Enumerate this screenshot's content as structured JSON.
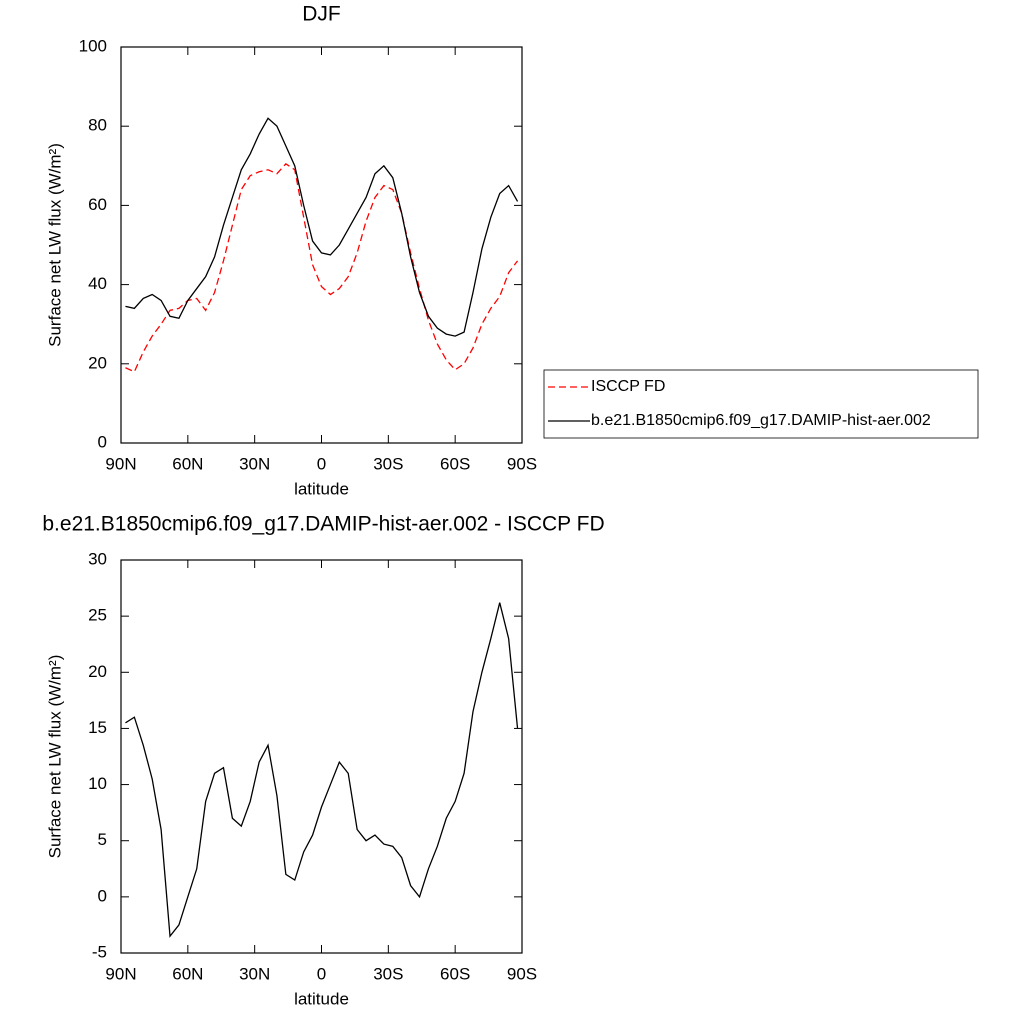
{
  "chart_data": [
    {
      "type": "line",
      "title": "DJF",
      "xlabel": "latitude",
      "ylabel": "Surface net LW flux (W/m²)",
      "x": [
        88,
        84,
        80,
        76,
        72,
        68,
        64,
        60,
        56,
        52,
        48,
        44,
        40,
        36,
        32,
        28,
        24,
        20,
        16,
        12,
        8,
        4,
        0,
        -4,
        -8,
        -12,
        -16,
        -20,
        -24,
        -28,
        -32,
        -36,
        -40,
        -44,
        -48,
        -52,
        -56,
        -60,
        -64,
        -68,
        -72,
        -76,
        -80,
        -84,
        -88
      ],
      "series": [
        {
          "name": "ISCCP FD",
          "color": "#ff0000",
          "style": "dashed",
          "values": [
            19,
            18,
            23,
            27,
            30,
            33.5,
            34,
            36,
            36.5,
            33.5,
            38,
            46,
            55,
            64,
            67.5,
            68.5,
            69,
            68,
            70.5,
            69,
            57,
            45,
            39.5,
            37.5,
            39,
            42,
            48,
            56,
            62,
            65,
            64,
            58,
            48,
            39,
            31,
            25,
            21,
            18.5,
            20,
            24,
            30,
            34,
            37,
            43,
            46
          ]
        },
        {
          "name": "b.e21.B1850cmip6.f09_g17.DAMIP-hist-aer.002",
          "color": "#000000",
          "style": "solid",
          "values": [
            34.5,
            34,
            36.5,
            37.5,
            36,
            32,
            31.5,
            36,
            39,
            42,
            47,
            55,
            62,
            69,
            73,
            78,
            82,
            80,
            75,
            70,
            60,
            51,
            48,
            47.5,
            50,
            54,
            58,
            62,
            68,
            70,
            67,
            58,
            47,
            38,
            32,
            29,
            27.5,
            27,
            28,
            38,
            49,
            57,
            63,
            65,
            61
          ]
        }
      ],
      "xlim": [
        90,
        -90
      ],
      "xticks": [
        {
          "value": 90,
          "label": "90N"
        },
        {
          "value": 60,
          "label": "60N"
        },
        {
          "value": 30,
          "label": "30N"
        },
        0,
        {
          "value": -30,
          "label": "30S"
        },
        {
          "value": -60,
          "label": "60S"
        },
        {
          "value": -90,
          "label": "90S"
        }
      ],
      "ylim": [
        0,
        100
      ],
      "yticks": [
        0,
        20,
        40,
        60,
        80,
        100
      ],
      "legend": "right"
    },
    {
      "type": "line",
      "title": "b.e21.B1850cmip6.f09_g17.DAMIP-hist-aer.002 - ISCCP FD",
      "xlabel": "latitude",
      "ylabel": "Surface net LW flux (W/m²)",
      "x": [
        88,
        84,
        80,
        76,
        72,
        68,
        64,
        60,
        56,
        52,
        48,
        44,
        40,
        36,
        32,
        28,
        24,
        20,
        16,
        12,
        8,
        4,
        0,
        -4,
        -8,
        -12,
        -16,
        -20,
        -24,
        -28,
        -32,
        -36,
        -40,
        -44,
        -48,
        -52,
        -56,
        -60,
        -64,
        -68,
        -72,
        -76,
        -80,
        -84,
        -88
      ],
      "series": [
        {
          "color": "#000000",
          "style": "solid",
          "values": [
            15.5,
            16,
            13.5,
            10.5,
            6,
            -3.5,
            -2.5,
            0,
            2.5,
            8.5,
            11,
            11.5,
            7,
            6.3,
            8.5,
            12,
            13.5,
            9,
            2,
            1.5,
            4,
            5.5,
            8,
            10,
            12,
            11,
            6,
            5,
            5.5,
            4.7,
            4.5,
            3.5,
            1,
            0,
            2.5,
            4.5,
            7,
            8.5,
            11,
            16.5,
            20,
            23,
            26.2,
            23,
            15
          ]
        }
      ],
      "xlim": [
        90,
        -90
      ],
      "xticks": [
        {
          "value": 90,
          "label": "90N"
        },
        {
          "value": 60,
          "label": "60N"
        },
        {
          "value": 30,
          "label": "30N"
        },
        0,
        {
          "value": -30,
          "label": "30S"
        },
        {
          "value": -60,
          "label": "60S"
        },
        {
          "value": -90,
          "label": "90S"
        }
      ],
      "ylim": [
        -5,
        30
      ],
      "yticks": [
        -5,
        0,
        5,
        10,
        15,
        20,
        25,
        30
      ]
    }
  ]
}
